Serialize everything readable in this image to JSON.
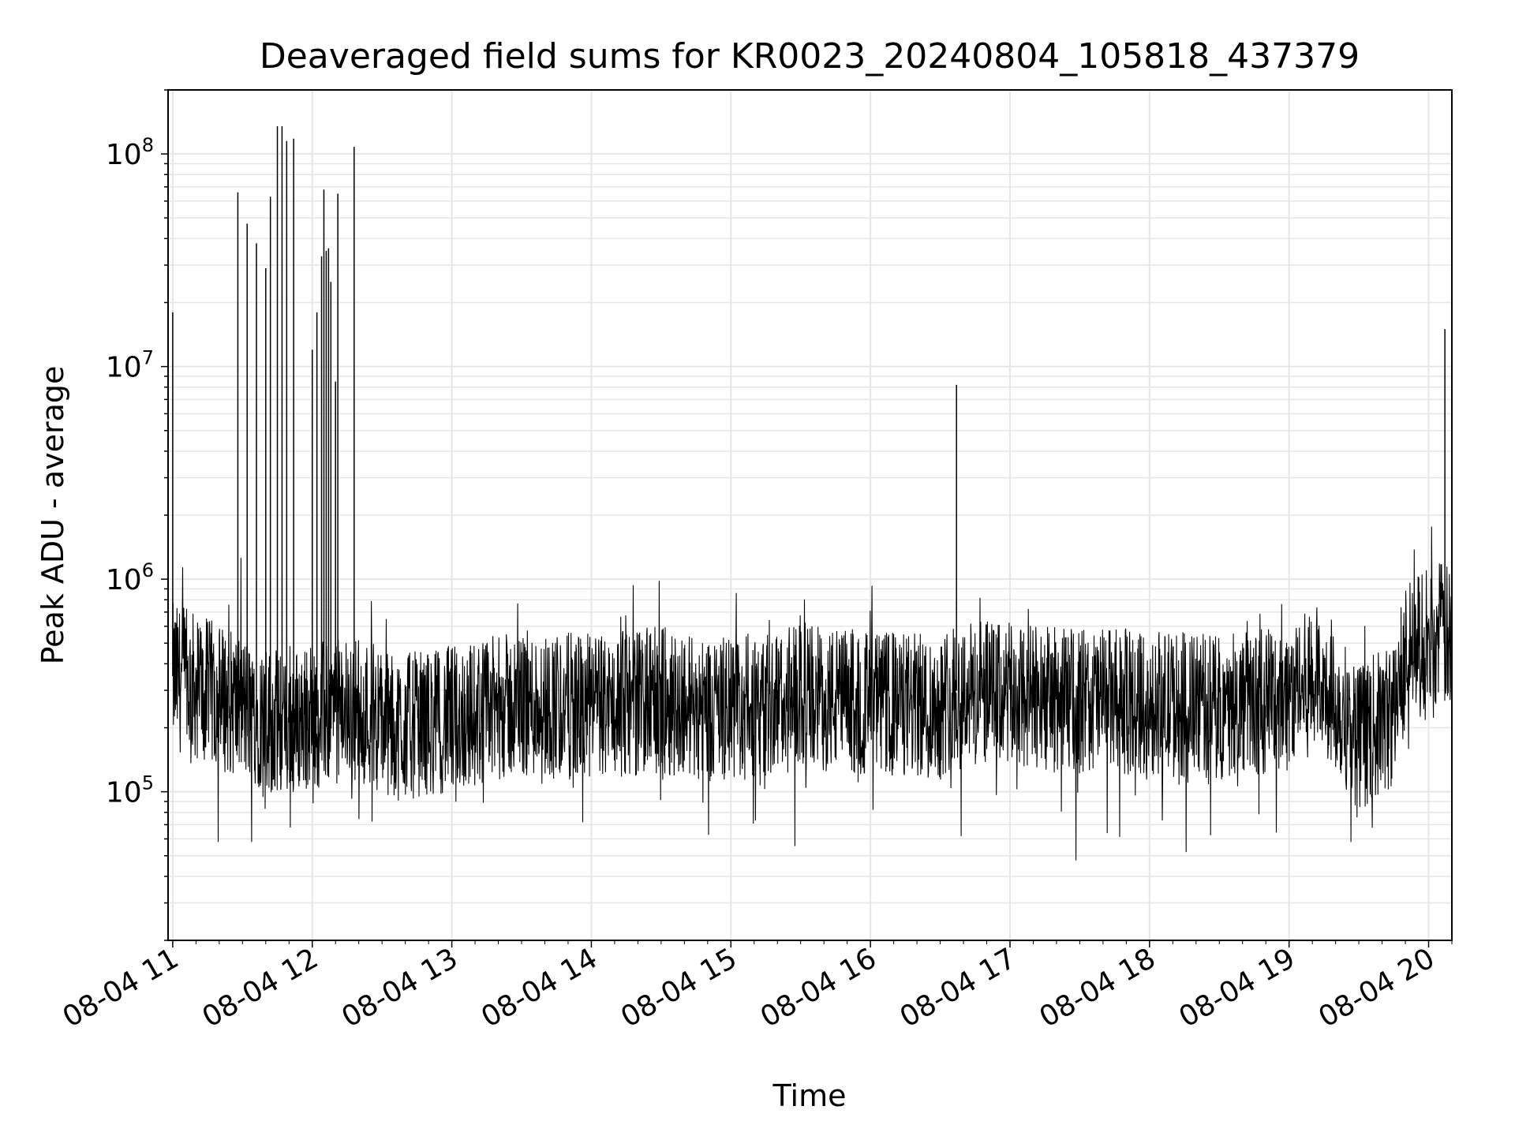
{
  "chart_data": {
    "type": "line",
    "title": "Deaveraged field sums for KR0023_20240804_105818_437379",
    "xlabel": "Time",
    "ylabel": "Peak ADU - average",
    "yscale": "log",
    "ylim": [
      20000,
      200000000
    ],
    "xlim": [
      "2024-08-04 10:58",
      "2024-08-04 20:10"
    ],
    "grid": true,
    "x_tick_labels": [
      "08-04 11",
      "08-04 12",
      "08-04 13",
      "08-04 14",
      "08-04 15",
      "08-04 16",
      "08-04 17",
      "08-04 18",
      "08-04 19",
      "08-04 20"
    ],
    "y_tick_labels": [
      {
        "base": "10",
        "exp": "5",
        "value": 100000
      },
      {
        "base": "10",
        "exp": "6",
        "value": 1000000
      },
      {
        "base": "10",
        "exp": "7",
        "value": 10000000
      },
      {
        "base": "10",
        "exp": "8",
        "value": 100000000
      }
    ],
    "line_color": "#000000",
    "grid_color": "#e6e6e6",
    "series": [
      {
        "x": [
          "11:00",
          "11:30",
          "11:48",
          "11:55",
          "12:05",
          "12:20",
          "12:35",
          "13:00",
          "13:30",
          "14:00",
          "14:30",
          "15:00",
          "15:30",
          "16:00",
          "16:30",
          "16:36",
          "17:00",
          "17:30",
          "18:00",
          "18:30",
          "19:00",
          "19:14",
          "19:30",
          "19:45",
          "19:50",
          "20:00",
          "20:05",
          "20:10"
        ],
        "y": [
          350000,
          250000,
          200000,
          220000,
          230000,
          250000,
          200000,
          220000,
          260000,
          250000,
          270000,
          240000,
          280000,
          260000,
          250000,
          300000,
          280000,
          270000,
          260000,
          250000,
          280000,
          350000,
          180000,
          230000,
          450000,
          520000,
          560000,
          500000
        ]
      }
    ],
    "spikes": [
      {
        "x": "11:00",
        "y": 18000000
      },
      {
        "x": "11:28",
        "y": 66000000
      },
      {
        "x": "11:32",
        "y": 47000000
      },
      {
        "x": "11:36",
        "y": 38000000
      },
      {
        "x": "11:40",
        "y": 29000000
      },
      {
        "x": "11:42",
        "y": 63000000
      },
      {
        "x": "11:45",
        "y": 135000000
      },
      {
        "x": "11:47",
        "y": 135000000
      },
      {
        "x": "11:49",
        "y": 115000000
      },
      {
        "x": "11:52",
        "y": 118000000
      },
      {
        "x": "12:00",
        "y": 12000000
      },
      {
        "x": "12:02",
        "y": 18000000
      },
      {
        "x": "12:04",
        "y": 33000000
      },
      {
        "x": "12:05",
        "y": 68000000
      },
      {
        "x": "12:06",
        "y": 35000000
      },
      {
        "x": "12:07",
        "y": 36000000
      },
      {
        "x": "12:08",
        "y": 25000000
      },
      {
        "x": "12:11",
        "y": 65000000
      },
      {
        "x": "12:10",
        "y": 8500000
      },
      {
        "x": "12:18",
        "y": 108000000
      },
      {
        "x": "16:37",
        "y": 8200000
      },
      {
        "x": "20:07",
        "y": 15000000
      }
    ]
  }
}
